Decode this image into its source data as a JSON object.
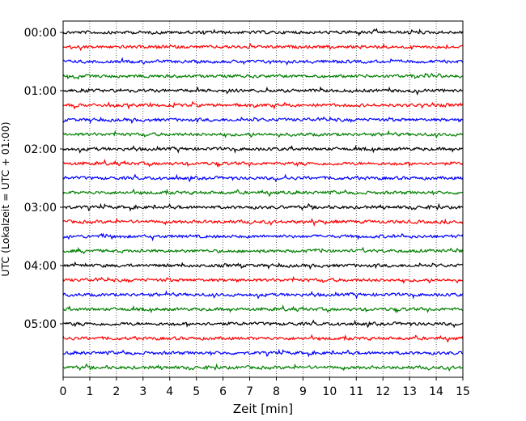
{
  "chart_data": {
    "type": "line",
    "title": "",
    "xlabel": "Zeit  [min]",
    "ylabel": "UTC (Lokalzeit = UTC + 01:00)",
    "xlim": [
      0,
      15
    ],
    "x_ticks": [
      "0",
      "1",
      "2",
      "3",
      "4",
      "5",
      "6",
      "7",
      "8",
      "9",
      "10",
      "11",
      "12",
      "13",
      "14",
      "15"
    ],
    "y_tick_labels": [
      "00:00",
      "01:00",
      "02:00",
      "03:00",
      "04:00",
      "05:00"
    ],
    "traces_per_hour": 4,
    "trace_count": 24,
    "trace_minutes": 15,
    "grid": "vertical-dotted",
    "series_colors": [
      "#000000",
      "#ff0000",
      "#0000ff",
      "#008000"
    ]
  }
}
